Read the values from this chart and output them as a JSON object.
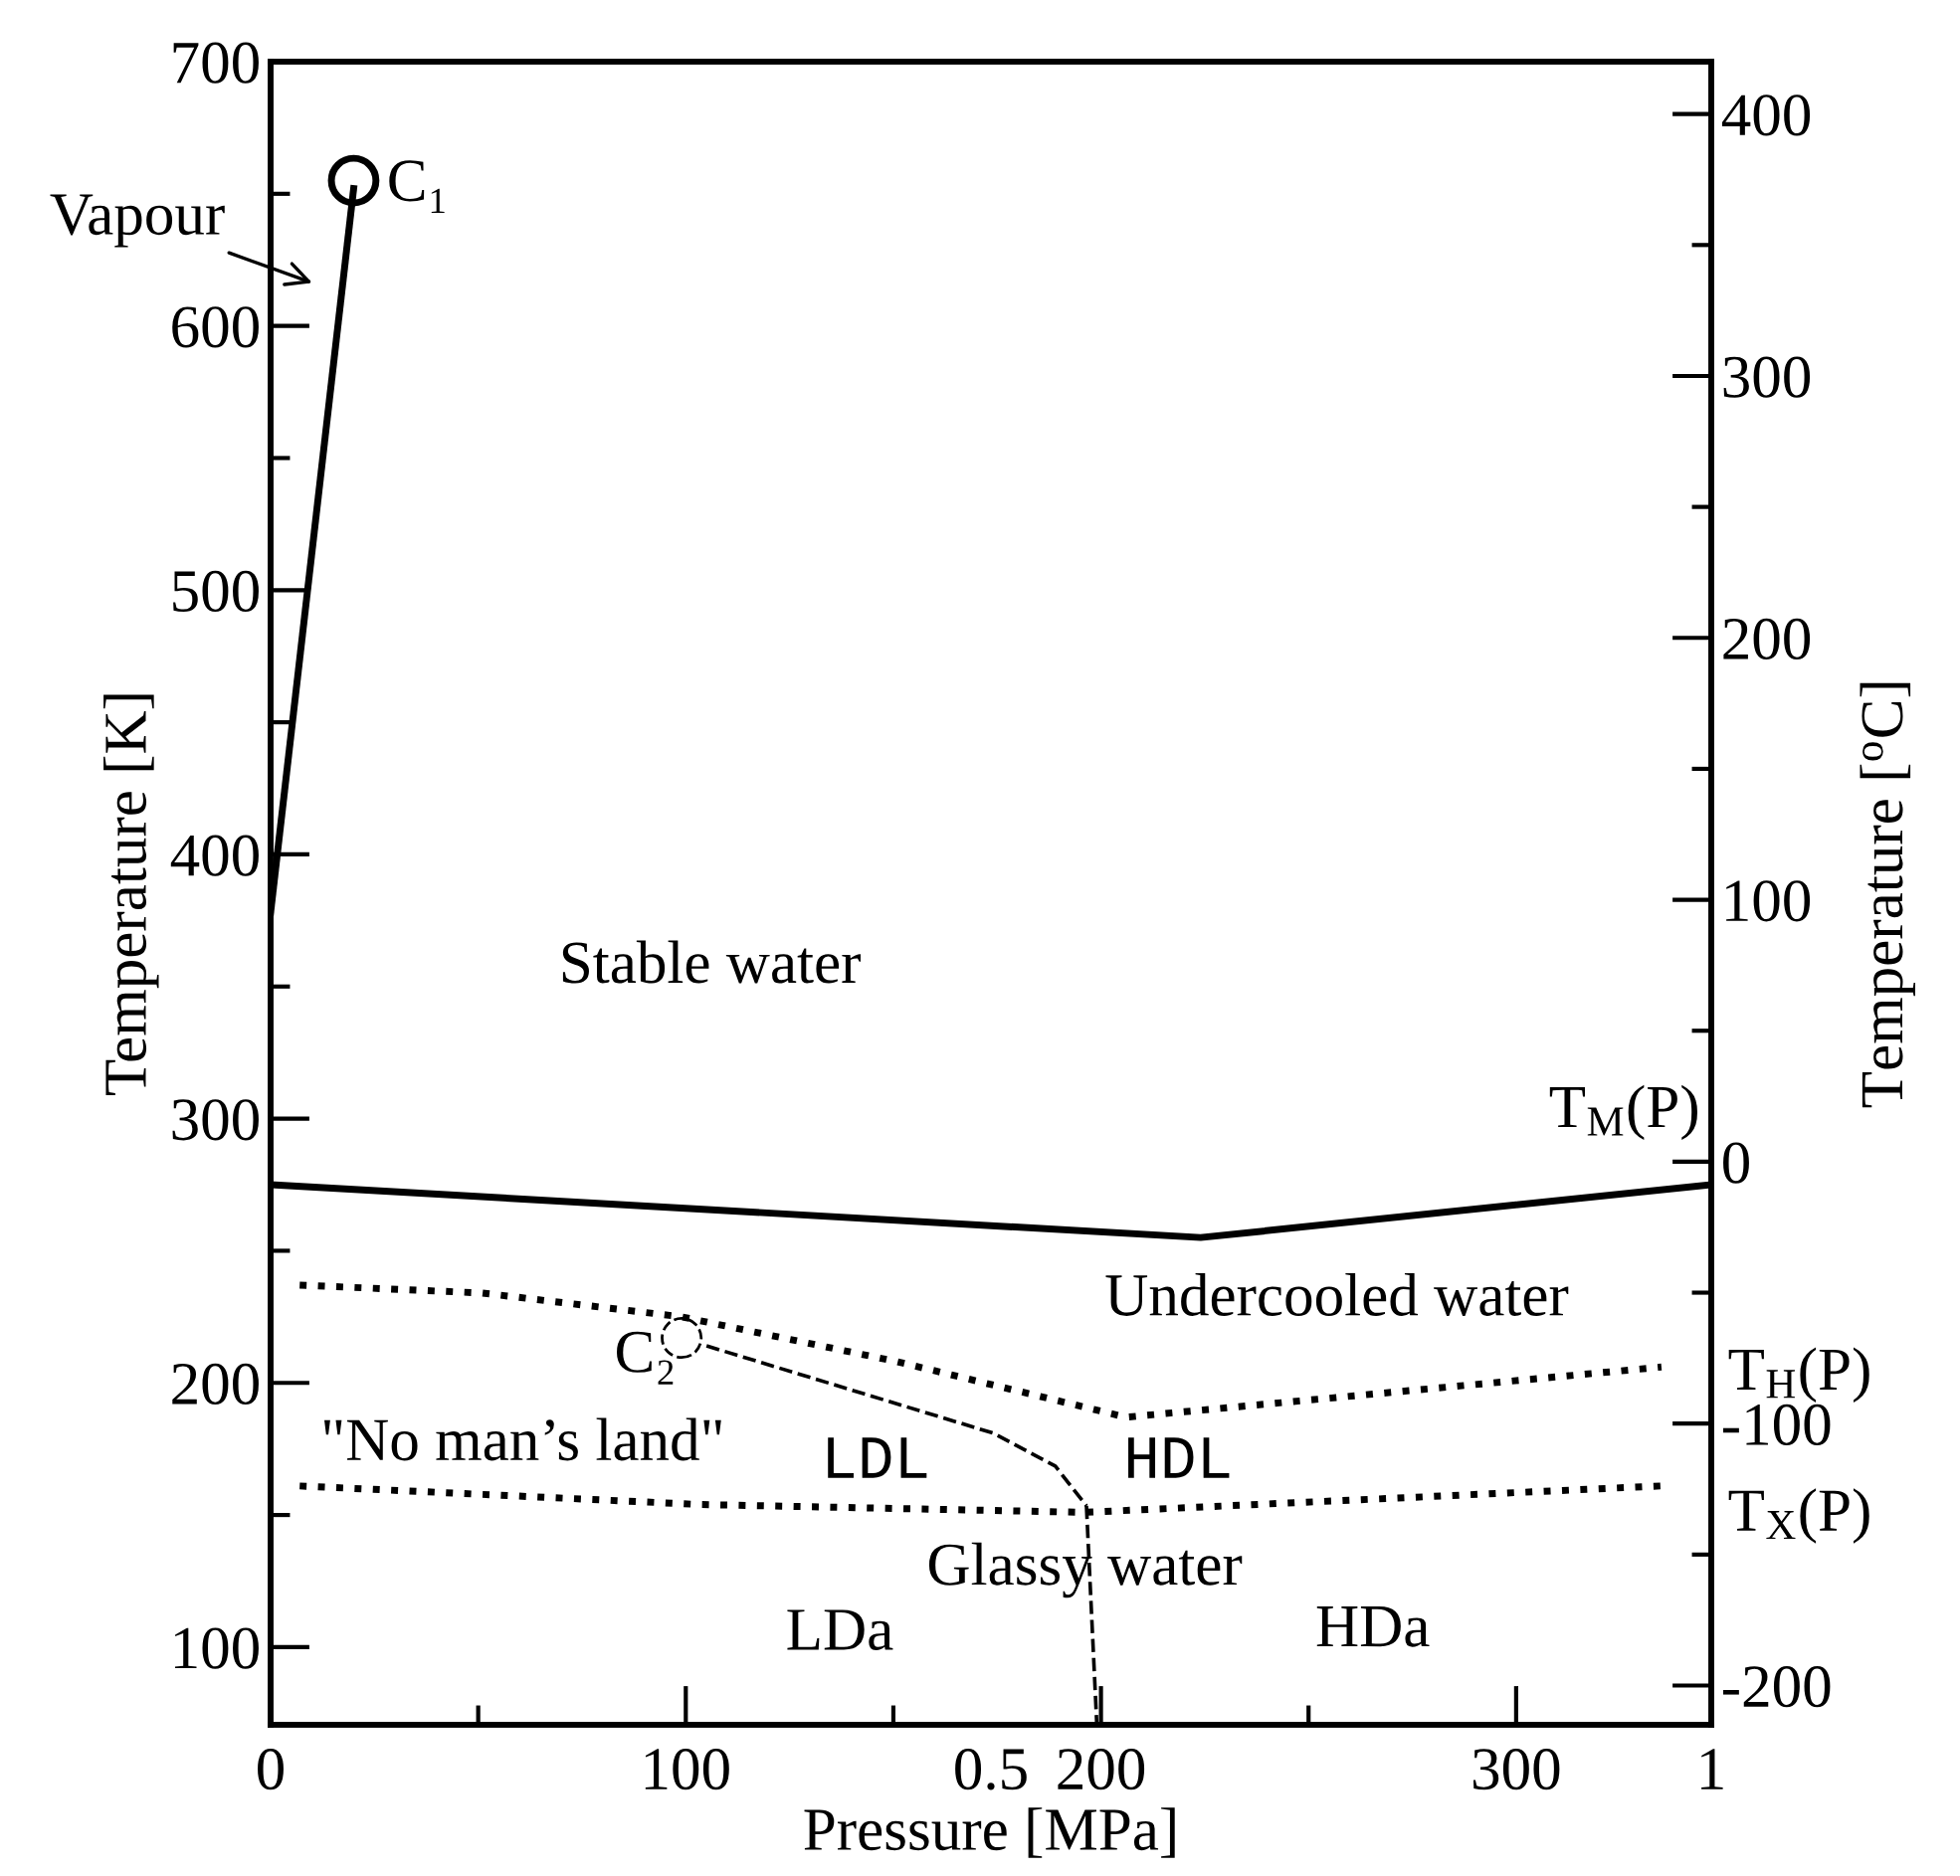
{
  "chart_data": {
    "type": "line",
    "xlabel": "Pressure [MPa]",
    "ylabel": "Temperature [K]",
    "y2label": "Temperature [$^{o}$C]",
    "xlim": [
      0,
      347
    ],
    "ylim": [
      70.6,
      700
    ],
    "y2lim": [
      -215,
      420
    ],
    "x2lim": [
      0,
      1
    ],
    "xticks": [
      0,
      {
        "value": 50,
        "label": null
      },
      100,
      {
        "value": 150,
        "label": null
      },
      200,
      {
        "value": 250,
        "label": null
      },
      300
    ],
    "x2ticks": [
      0.5,
      1
    ],
    "yticks": [
      100,
      {
        "value": 150,
        "label": null
      },
      200,
      {
        "value": 250,
        "label": null
      },
      300,
      {
        "value": 350,
        "label": null
      },
      400,
      {
        "value": 450,
        "label": null
      },
      500,
      {
        "value": 550,
        "label": null
      },
      600,
      {
        "value": 650,
        "label": null
      },
      700
    ],
    "y2ticks": [
      -200,
      {
        "value": -150,
        "label": null
      },
      -100,
      {
        "value": -50,
        "label": null
      },
      0,
      {
        "value": 50,
        "label": null
      },
      100,
      {
        "value": 150,
        "label": null
      },
      200,
      {
        "value": 250,
        "label": null
      },
      300,
      {
        "value": 350,
        "label": null
      },
      400
    ],
    "grid": false,
    "series": [
      {
        "color": "#000000",
        "line_style": "solid",
        "x": [
          0,
          20
        ],
        "values": [
          378,
          652
        ]
      },
      {
        "color": "#000000",
        "line_style": "solid",
        "x": [
          0,
          224,
          347
        ],
        "values": [
          275,
          255,
          275
        ]
      },
      {
        "color": "#000000",
        "line_style": "dotted",
        "x": [
          7,
          51,
          99,
          151,
          206,
          335
        ],
        "values": [
          237,
          234,
          225,
          208,
          187,
          206
        ]
      },
      {
        "color": "#000000",
        "line_style": "dotted",
        "x": [
          7,
          103,
          196,
          335
        ],
        "values": [
          161,
          154,
          151,
          161
        ]
      },
      {
        "color": "#000000",
        "line_style": "dashed",
        "x": [
          105,
          174,
          189,
          196.5
        ],
        "values": [
          214,
          181,
          168.5,
          153.5
        ]
      },
      {
        "color": "#000000",
        "line_style": "dashed",
        "x": [
          196.5,
          199
        ],
        "values": [
          153.5,
          70.6
        ]
      },
      {
        "type": "scatter",
        "color": "#000000",
        "marker": "circle",
        "line_style": "solid",
        "x": [
          20
        ],
        "values": [
          655
        ]
      },
      {
        "type": "scatter",
        "color": "#000000",
        "marker": "circle",
        "line_style": "dashed",
        "x": [
          99
        ],
        "values": [
          217
        ]
      }
    ],
    "annotations": [
      "Vapour",
      {
        "text": "C₁",
        "x": 20,
        "y": 655
      },
      {
        "text": "C₂",
        "x": 99,
        "y": 217
      },
      "Stable water",
      "Undercooled water",
      "\"No man’s land\"",
      "LDL",
      "HDL",
      "Glassy water",
      "LDa",
      "HDa",
      {
        "text": "T$_{M}$(P)",
        "x": 347,
        "y": 275
      },
      {
        "text": "T$_{H}$(P)",
        "x": 335,
        "y": 206
      },
      {
        "text": "T$_{X}$(P)",
        "x": 335,
        "y": 161
      }
    ]
  }
}
